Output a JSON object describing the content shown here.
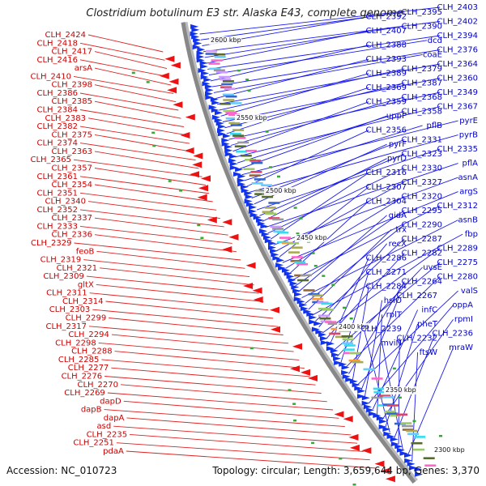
{
  "title": "Clostridium botulinum E3 str. Alaska E43, complete genome",
  "footer": {
    "accession": "Accession: NC_010723",
    "summary": "Topology: circular; Length: 3,659,644 bp; Genes: 3,370"
  },
  "kbp_ticks": [
    "2600 kbp",
    "2550 kbp",
    "2500 kbp",
    "2450 kbp",
    "2400 kbp",
    "2350 kbp",
    "2300 kbp"
  ],
  "colors": {
    "reverse_label": "#cc0000",
    "forward_label": "#0000cc",
    "backbone": "#888888"
  },
  "left_labels": [
    "CLH_2424",
    "CLH_2418",
    "CLH_2417",
    "CLH_2416",
    "arsA",
    "CLH_2410",
    "CLH_2398",
    "CLH_2386",
    "CLH_2385",
    "CLH_2384",
    "CLH_2383",
    "CLH_2382",
    "CLH_2375",
    "CLH_2374",
    "CLH_2363",
    "CLH_2365",
    "CLH_2357",
    "CLH_2361",
    "CLH_2354",
    "CLH_2351",
    "CLH_2340",
    "CLH_2352",
    "CLH_2337",
    "CLH_2333",
    "CLH_2336",
    "CLH_2329",
    "feoB",
    "CLH_2319",
    "CLH_2321",
    "CLH_2309",
    "gltX",
    "CLH_2311",
    "CLH_2314",
    "CLH_2303",
    "CLH_2299",
    "CLH_2317",
    "CLH_2294",
    "CLH_2298",
    "CLH_2288",
    "CLH_2285",
    "CLH_2277",
    "CLH_2276",
    "CLH_2270",
    "CLH_2269",
    "dapD",
    "dapB",
    "dapA",
    "asd",
    "CLH_2235",
    "CLH_2251",
    "pdaA"
  ],
  "right_labels": [
    "CLH_2403",
    "CLH_2395",
    "CLH_2392",
    "CLH_2402",
    "CLH_2390",
    "CLH_2407",
    "CLH_2394",
    "dcd",
    "CLH_2388",
    "CLH_2376",
    "coaE",
    "CLH_2393",
    "CLH_2364",
    "CLH_2379",
    "CLH_2389",
    "CLH_2360",
    "CLH_2387",
    "CLH_2369",
    "CLH_2349",
    "CLH_2368",
    "CLH_2359",
    "CLH_2367",
    "CLH_2358",
    "uppP",
    "pyrE",
    "pflB",
    "CLH_2356",
    "pyrB",
    "CLH_2331",
    "pyrF",
    "CLH_2335",
    "CLH_2323",
    "pyrD",
    "pflA",
    "CLH_2330",
    "CLH_2316",
    "asnA",
    "CLH_2327",
    "CLH_2307",
    "argS",
    "CLH_2320",
    "CLH_2304",
    "CLH_2312",
    "CLH_2295",
    "gidA",
    "asnB",
    "CLH_2290",
    "trx",
    "fbp",
    "CLH_2287",
    "recX",
    "CLH_2289",
    "CLH_2282",
    "CLH_2286",
    "CLH_2275",
    "uvsE",
    "CLH_2271",
    "CLH_2280",
    "CLH_2264",
    "CLH_2284",
    "valS",
    "CLH_2267",
    "hslO",
    "oppA",
    "infC",
    "rplT",
    "rpmI",
    "pheT",
    "CLH_2239",
    "CLH_2236",
    "CLH_2232",
    "mviN",
    "mraW",
    "ftsW"
  ]
}
